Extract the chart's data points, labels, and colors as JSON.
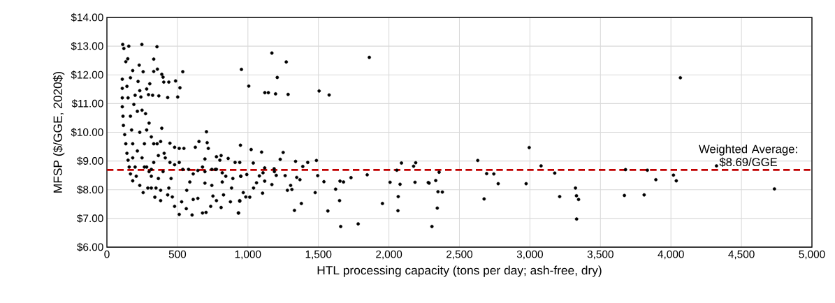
{
  "chart_data": {
    "type": "scatter",
    "xlabel": "HTL processing capacity (tons per day; ash-free, dry)",
    "ylabel": "MFSP ($/GGE, 2020$)",
    "x": [
      112,
      120,
      155,
      248,
      355,
      332,
      134,
      148,
      229,
      183,
      257,
      332,
      358,
      538,
      389,
      398,
      439,
      487,
      403,
      518,
      502,
      431,
      368,
      324,
      295,
      241,
      200,
      233,
      282,
      304,
      221,
      167,
      389,
      706,
      109,
      109,
      109,
      109,
      114,
      117,
      126,
      134,
      142,
      150,
      158,
      167,
      183,
      208,
      233,
      257,
      266,
      299,
      315,
      340,
      381,
      431,
      455,
      464,
      480,
      513,
      530,
      563,
      566,
      604,
      612,
      645,
      678,
      703,
      736,
      752,
      777,
      810,
      827,
      876,
      884,
      934,
      942,
      950,
      942,
      909,
      860,
      810,
      801,
      777,
      711,
      719,
      653,
      627,
      695,
      678,
      695,
      744,
      777,
      818,
      843,
      893,
      818,
      769,
      744,
      695,
      645,
      588,
      612,
      579,
      538,
      513,
      546,
      480,
      447,
      406,
      381,
      356,
      315,
      299,
      274,
      249,
      216,
      191,
      282,
      332,
      365,
      414,
      447,
      480,
      513,
      398,
      365,
      315,
      282,
      249,
      216,
      183,
      175,
      167,
      150,
      142,
      183,
      200,
      233,
      266,
      332,
      381,
      439,
      348,
      290,
      315,
      954,
      1170,
      1272,
      1208,
      1006,
      1120,
      1145,
      1196,
      1285,
      1505,
      1576,
      1861,
      947,
      1023,
      1097,
      1250,
      1229,
      1038,
      1338,
      1424,
      1486,
      1389,
      949,
      992,
      1081,
      1119,
      1107,
      1186,
      1188,
      1201,
      1264,
      1346,
      1369,
      1495,
      1061,
      1119,
      1170,
      1539,
      1040,
      1303,
      1312,
      1280,
      967,
      985,
      1013,
      1104,
      1477,
      942,
      1330,
      1379,
      1567,
      932,
      1622,
      1653,
      1678,
      1731,
      1650,
      1658,
      1782,
      1846,
      1954,
      2008,
      2056,
      2089,
      2079,
      2066,
      2064,
      2175,
      2190,
      2185,
      2279,
      2285,
      2332,
      2356,
      2348,
      2379,
      2343,
      2305,
      4067,
      2630,
      2995,
      2693,
      2744,
      2775,
      2675,
      2973,
      3079,
      3176,
      3211,
      3323,
      3330,
      3345,
      3331,
      3678,
      3670,
      3810,
      3833,
      3893,
      4018,
      4038,
      4323,
      4734
    ],
    "values": [
      13.06,
      12.92,
      13.0,
      13.06,
      12.98,
      12.55,
      12.46,
      12.56,
      12.34,
      12.15,
      12.11,
      12.12,
      12.2,
      12.11,
      12.02,
      11.92,
      11.75,
      11.79,
      11.75,
      11.55,
      11.23,
      11.21,
      11.27,
      11.29,
      11.31,
      11.23,
      11.29,
      11.45,
      11.51,
      11.69,
      11.77,
      11.9,
      10.14,
      10.02,
      11.85,
      11.53,
      11.2,
      10.89,
      10.56,
      10.24,
      9.92,
      9.6,
      9.27,
      9.03,
      8.79,
      8.55,
      8.31,
      8.47,
      8.15,
      7.9,
      8.79,
      8.63,
      8.06,
      7.74,
      7.62,
      7.82,
      8.39,
      7.75,
      7.42,
      7.14,
      7.58,
      7.34,
      7.98,
      7.12,
      7.66,
      7.7,
      7.19,
      7.21,
      7.42,
      7.78,
      7.62,
      7.38,
      7.82,
      7.58,
      8.06,
      7.19,
      7.62,
      8.47,
      8.95,
      8.95,
      9.09,
      9.19,
      9.03,
      9.15,
      9.64,
      9.44,
      9.68,
      9.48,
      9.07,
      8.79,
      8.63,
      8.71,
      8.71,
      8.59,
      8.47,
      8.39,
      8.27,
      8.71,
      8.15,
      8.23,
      8.67,
      8.27,
      8.55,
      8.71,
      8.71,
      9.44,
      9.44,
      9.48,
      9.62,
      9.27,
      9.68,
      9.6,
      9.84,
      10.32,
      10.65,
      10.77,
      10.73,
      10.97,
      10.08,
      9.6,
      9.19,
      9.11,
      8.95,
      8.87,
      8.95,
      8.63,
      8.39,
      8.47,
      8.79,
      9.11,
      9.35,
      9.6,
      10.08,
      10.56,
      11.2,
      11.6,
      9.11,
      8.79,
      10.0,
      9.6,
      8.95,
      7.98,
      8.06,
      8.06,
      8.06,
      8.71,
      12.19,
      12.76,
      12.45,
      11.91,
      11.61,
      11.38,
      11.38,
      11.34,
      11.32,
      11.44,
      11.3,
      12.61,
      9.55,
      9.4,
      9.31,
      9.3,
      9.06,
      8.93,
      8.99,
      8.95,
      9.02,
      8.81,
      8.47,
      8.53,
      8.48,
      8.76,
      8.59,
      8.73,
      8.63,
      8.5,
      8.49,
      8.43,
      8.35,
      8.49,
      8.24,
      8.3,
      8.18,
      8.28,
      8.06,
      8.15,
      8.01,
      7.98,
      7.9,
      7.75,
      7.74,
      7.88,
      7.9,
      7.6,
      7.28,
      7.52,
      7.26,
      7.19,
      8.02,
      8.3,
      8.27,
      8.42,
      7.62,
      6.72,
      6.81,
      8.52,
      7.52,
      8.26,
      8.68,
      8.93,
      8.19,
      7.76,
      7.27,
      8.82,
      8.94,
      8.26,
      8.25,
      8.23,
      8.32,
      8.61,
      7.93,
      7.92,
      7.36,
      6.72,
      11.9,
      9.02,
      9.47,
      8.56,
      8.55,
      8.21,
      7.68,
      8.21,
      8.83,
      8.58,
      7.76,
      8.06,
      7.79,
      7.66,
      6.98,
      8.7,
      7.8,
      7.82,
      8.68,
      8.35,
      8.51,
      8.31,
      8.83,
      8.03
    ],
    "color": "#000000",
    "marker": "circle",
    "grid": true,
    "xlim": [
      0,
      5000
    ],
    "xticks": [
      0,
      500,
      {
        "value": 1000,
        "label": "1,000"
      },
      {
        "value": 1500,
        "label": "1,500"
      },
      {
        "value": 2000,
        "label": "2,000"
      },
      {
        "value": 2500,
        "label": "2,500"
      },
      {
        "value": 3000,
        "label": "3,000"
      },
      {
        "value": 3500,
        "label": "3,500"
      },
      {
        "value": 4000,
        "label": "4,000"
      },
      {
        "value": 4500,
        "label": "4,500"
      },
      {
        "value": 5000,
        "label": "5,000"
      }
    ],
    "ylim": [
      6,
      14
    ],
    "yticks": [
      {
        "value": 6,
        "label": "$6.00"
      },
      {
        "value": 7,
        "label": "$7.00"
      },
      {
        "value": 8,
        "label": "$8.00"
      },
      {
        "value": 9,
        "label": "$9.00"
      },
      {
        "value": 10,
        "label": "$10.00"
      },
      {
        "value": 11,
        "label": "$11.00"
      },
      {
        "value": 12,
        "label": "$12.00"
      },
      {
        "value": 13,
        "label": "$13.00"
      },
      {
        "value": 14,
        "label": "$14.00"
      }
    ],
    "ref_lines": [
      {
        "axis": "y",
        "value": 8.69,
        "label": "Weighted Average: $8.69/GGE",
        "color": "#c00000",
        "line_style": "dashed"
      }
    ]
  }
}
